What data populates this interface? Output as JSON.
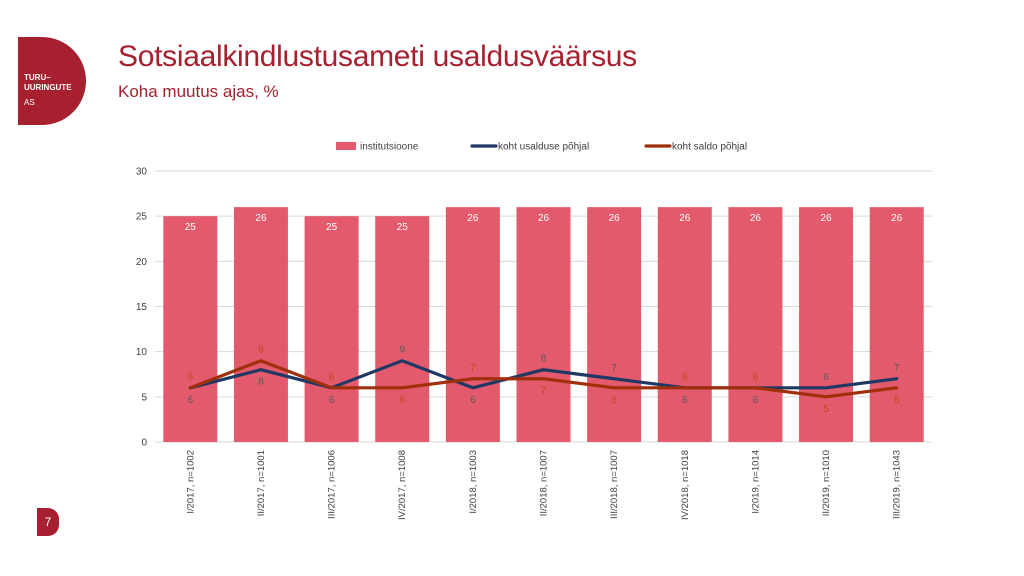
{
  "logo": {
    "line1": "TURU–",
    "line2": "UURINGUTE",
    "line3": "AS"
  },
  "slide": {
    "title": "Sotsiaalkindlustusameti usaldusväärsus",
    "subtitle": "Koha muutus ajas, %",
    "page_number": "7"
  },
  "colors": {
    "brand": "#a6202f",
    "bars": "#e35a6c",
    "line_usaldus": "#1f3864",
    "line_saldo": "#a0300c"
  },
  "chart_data": {
    "type": "bar",
    "categories": [
      "I/2017, n=1002",
      "II/2017, n=1001",
      "III/2017, n=1006",
      "IV/2017, n=1008",
      "I/2018, n=1003",
      "II/2018, n=1007",
      "III/2018, n=1007",
      "IV/2018, n=1018",
      "I/2019, n=1014",
      "II/2019, n=1010",
      "III/2019, n=1043"
    ],
    "series": [
      {
        "name": "institutsioone",
        "kind": "bar",
        "values": [
          25,
          26,
          25,
          25,
          26,
          26,
          26,
          26,
          26,
          26,
          26
        ]
      },
      {
        "name": "koht usalduse põhjal",
        "kind": "line",
        "values": [
          6,
          8,
          6,
          9,
          6,
          8,
          7,
          6,
          6,
          6,
          7
        ]
      },
      {
        "name": "koht saldo põhjal",
        "kind": "line",
        "values": [
          6,
          9,
          6,
          6,
          7,
          7,
          6,
          6,
          6,
          5,
          6
        ]
      }
    ],
    "ylim": [
      0,
      30
    ],
    "yticks": [
      0,
      5,
      10,
      15,
      20,
      25,
      30
    ],
    "grid": true,
    "legend": "top"
  }
}
